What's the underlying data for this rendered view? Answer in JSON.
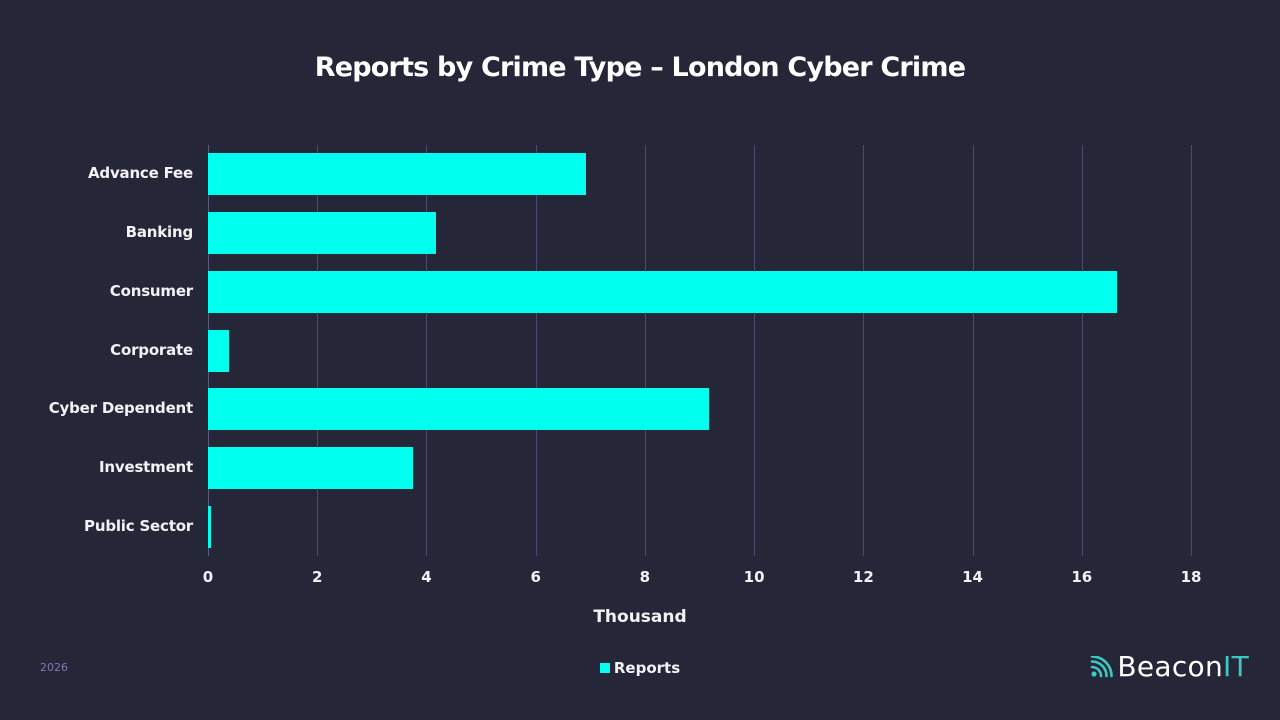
{
  "chart_data": {
    "type": "bar",
    "orientation": "horizontal",
    "title": "Reports by Crime Type – London Cyber Crime",
    "xlabel": "Thousand",
    "ylabel": "",
    "categories": [
      "Advance Fee",
      "Banking",
      "Consumer",
      "Corporate",
      "Cyber Dependent",
      "Investment",
      "Public Sector"
    ],
    "series": [
      {
        "name": "Reports",
        "color": "#00ffee",
        "values": [
          6.92,
          4.18,
          16.65,
          0.38,
          9.17,
          3.75,
          0.05
        ]
      }
    ],
    "xlim": [
      0,
      18
    ],
    "xticks": [
      "0",
      "2",
      "4",
      "6",
      "8",
      "10",
      "12",
      "14",
      "16",
      "18"
    ],
    "grid": true,
    "legend_position": "bottom"
  },
  "footer": {
    "year": "2026",
    "brand_main": "Beacon",
    "brand_accent": "IT"
  },
  "colors": {
    "background": "#262639",
    "bar": "#00ffee",
    "grid": "#4a4a6e",
    "brand_accent": "#3ec9c0",
    "footer_text": "#7b7bb0"
  }
}
